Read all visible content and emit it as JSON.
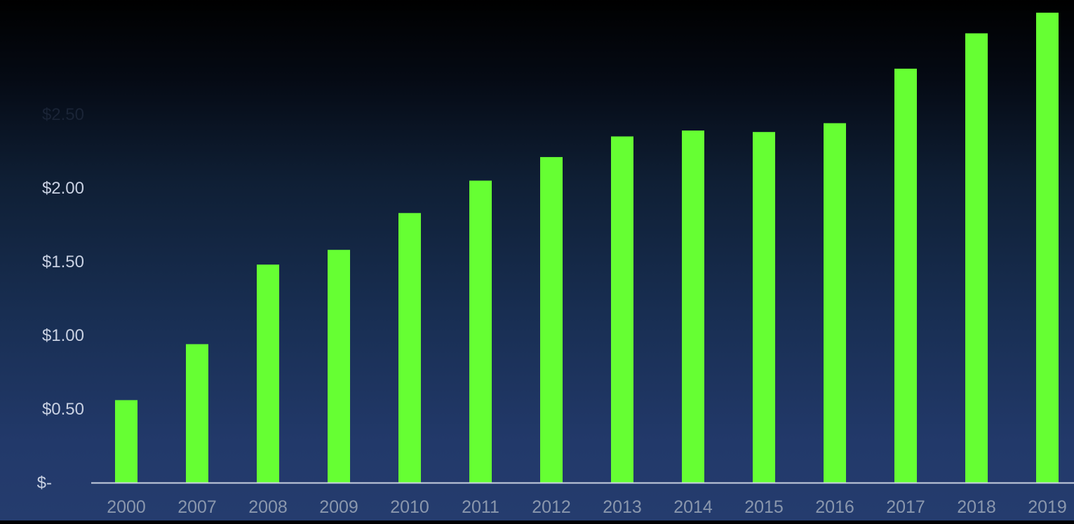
{
  "chart_data": {
    "type": "bar",
    "categories": [
      "2000",
      "2007",
      "2008",
      "2009",
      "2010",
      "2011",
      "2012",
      "2013",
      "2014",
      "2015",
      "2016",
      "2017",
      "2018",
      "2019"
    ],
    "values": [
      0.56,
      0.94,
      1.48,
      1.58,
      1.83,
      2.05,
      2.21,
      2.35,
      2.39,
      2.38,
      2.44,
      2.81,
      3.05,
      3.19
    ],
    "y_ticks": [
      {
        "value": 0,
        "label": "$-"
      },
      {
        "value": 0.5,
        "label": "$0.50"
      },
      {
        "value": 1.0,
        "label": "$1.00"
      },
      {
        "value": 1.5,
        "label": "$1.50"
      },
      {
        "value": 2.0,
        "label": "$2.00"
      },
      {
        "value": 2.5,
        "label": "$2.50"
      }
    ],
    "ylim": [
      0,
      3.2
    ],
    "grid": false,
    "legend": "none",
    "title": "",
    "xlabel": "",
    "ylabel": "",
    "colors": {
      "bar": "#66ff33",
      "axis_line": "#c8d0e0",
      "x_tick_label": "#8a97ad",
      "y_tick_label": "#c9d1e2",
      "y_tick_label_dark": "#1a2436"
    }
  }
}
